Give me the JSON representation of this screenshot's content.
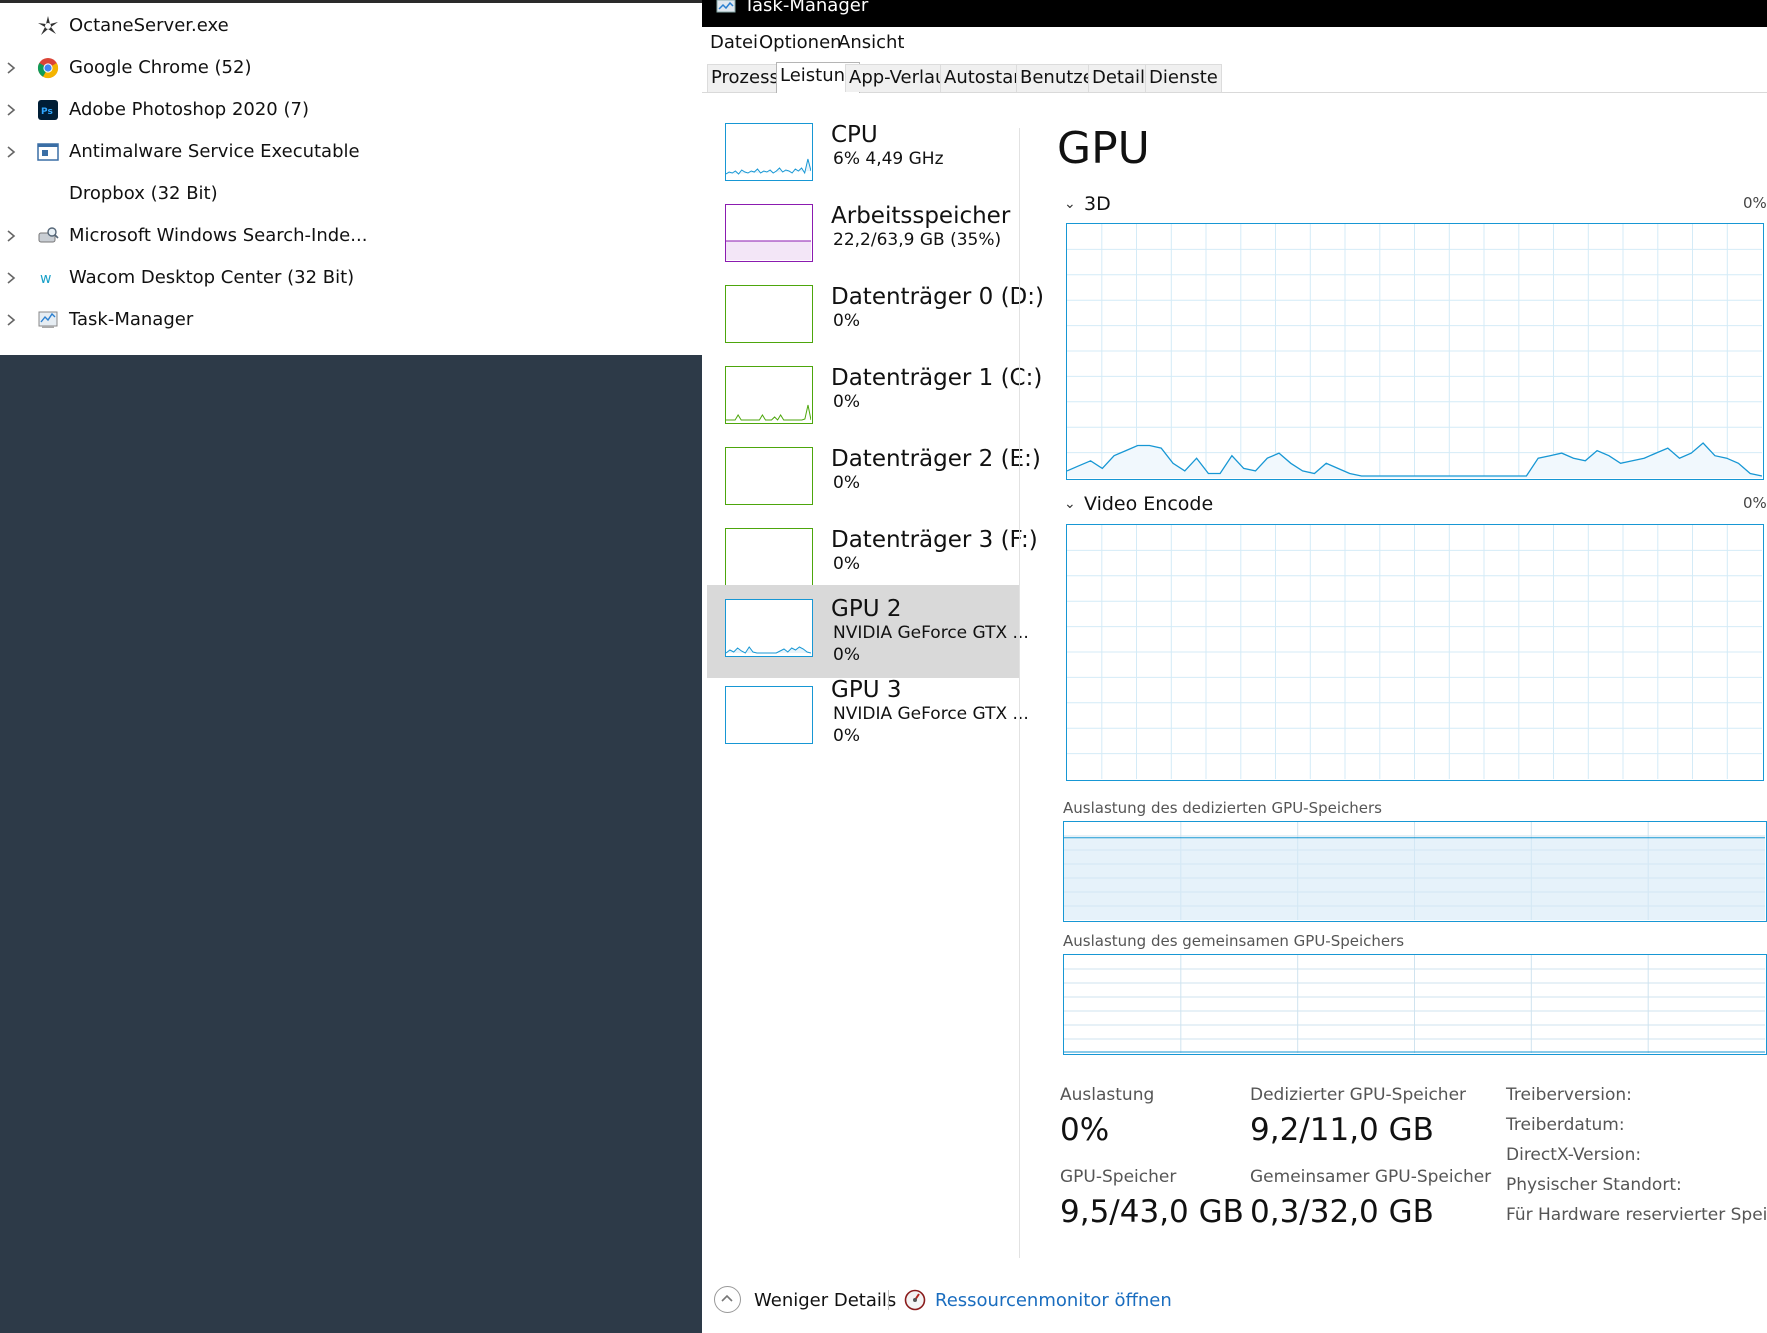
{
  "process_list": [
    {
      "name": "OctaneServer.exe",
      "icon": "octane-icon",
      "expandable": false
    },
    {
      "name": "Google Chrome (52)",
      "icon": "chrome-icon",
      "expandable": true
    },
    {
      "name": "Adobe Photoshop 2020 (7)",
      "icon": "photoshop-icon",
      "expandable": true
    },
    {
      "name": "Antimalware Service Executable",
      "icon": "antimalware-icon",
      "expandable": true
    },
    {
      "name": "Dropbox (32 Bit)",
      "icon": "none",
      "expandable": false
    },
    {
      "name": "Microsoft Windows Search-Inde...",
      "icon": "search-indexer-icon",
      "expandable": true
    },
    {
      "name": "Wacom Desktop Center (32 Bit)",
      "icon": "wacom-icon",
      "expandable": true
    },
    {
      "name": "Task-Manager",
      "icon": "task-manager-icon",
      "expandable": true
    }
  ],
  "window": {
    "title": "Task-Manager"
  },
  "menu": [
    "Datei",
    "Optionen",
    "Ansicht"
  ],
  "tabs": [
    "Prozesse",
    "Leistung",
    "App-Verlauf",
    "Autostart",
    "Benutzer",
    "Details",
    "Dienste"
  ],
  "active_tab": "Leistung",
  "sidebar": [
    {
      "title": "CPU",
      "sub1": "6%  4,49 GHz",
      "color": "#1797d4"
    },
    {
      "title": "Arbeitsspeicher",
      "sub1": "22,2/63,9 GB (35%)",
      "color": "#8b1bb0"
    },
    {
      "title": "Datenträger 0 (D:)",
      "sub1": "0%",
      "color": "#4da60c"
    },
    {
      "title": "Datenträger 1 (C:)",
      "sub1": "0%",
      "color": "#4da60c"
    },
    {
      "title": "Datenträger 2 (E:)",
      "sub1": "0%",
      "color": "#4da60c"
    },
    {
      "title": "Datenträger 3 (F:)",
      "sub1": "0%",
      "color": "#4da60c"
    },
    {
      "title": "GPU 2",
      "sub1": "NVIDIA GeForce GTX ...",
      "sub2": "0%",
      "color": "#1797d4",
      "selected": true
    },
    {
      "title": "GPU 3",
      "sub1": "NVIDIA GeForce GTX ...",
      "sub2": "0%",
      "color": "#1797d4"
    }
  ],
  "main": {
    "title": "GPU",
    "engine1": {
      "label": "3D",
      "pct": "0%"
    },
    "engine2": {
      "label": "Video Encode",
      "pct": "0%"
    },
    "dedicated_mem_label": "Auslastung des dedizierten GPU-Speichers",
    "shared_mem_label": "Auslastung des gemeinsamen GPU-Speichers"
  },
  "stats": {
    "utilization_label": "Auslastung",
    "utilization_value": "0%",
    "dedicated_label": "Dedizierter GPU-Speicher",
    "dedicated_value": "9,2/11,0 GB",
    "gpu_mem_label": "GPU-Speicher",
    "gpu_mem_value": "9,5/43,0 GB",
    "shared_label": "Gemeinsamer GPU-Speicher",
    "shared_value": "0,3/32,0 GB"
  },
  "info_labels": [
    "Treiberversion:",
    "Treiberdatum:",
    "DirectX-Version:",
    "Physischer Standort:",
    "Für Hardware reservierter Speicher:"
  ],
  "footer": {
    "less_details": "Weniger Details",
    "resource_monitor": "Ressourcenmonitor öffnen"
  },
  "colors": {
    "accent_blue": "#1797d4",
    "memory_purple": "#8b1bb0",
    "disk_green": "#4da60c",
    "link_blue": "#1a6dbf",
    "desktop_bg": "#2d3a48"
  },
  "chart_data": [
    {
      "type": "line",
      "title": "3D",
      "ylim": [
        0,
        100
      ],
      "x_points": 60,
      "series": [
        {
          "values": [
            2,
            4,
            6,
            3,
            8,
            10,
            12,
            12,
            11,
            5,
            2,
            7,
            1,
            1,
            8,
            3,
            2,
            7,
            9,
            5,
            2,
            1,
            5,
            3,
            1,
            0,
            0,
            0,
            0,
            0,
            0,
            0,
            0,
            0,
            0,
            0,
            0,
            0,
            0,
            0,
            7,
            8,
            9,
            7,
            6,
            10,
            8,
            5,
            6,
            7,
            9,
            11,
            7,
            9,
            13,
            8,
            7,
            5,
            1,
            0
          ]
        }
      ]
    },
    {
      "type": "line",
      "title": "Video Encode",
      "ylim": [
        0,
        100
      ],
      "series": [
        {
          "values": [
            0,
            0,
            0,
            0,
            0,
            0,
            0,
            0,
            0,
            0
          ]
        }
      ]
    },
    {
      "type": "area",
      "title": "Auslastung des dedizierten GPU-Speichers",
      "ylim": [
        0,
        100
      ],
      "series": [
        {
          "values": [
            84,
            84,
            84,
            84,
            84,
            84,
            84,
            84,
            84,
            84
          ]
        }
      ]
    },
    {
      "type": "area",
      "title": "Auslastung des gemeinsamen GPU-Speichers",
      "ylim": [
        0,
        100
      ],
      "series": [
        {
          "values": [
            1,
            1,
            1,
            1,
            1,
            1,
            1,
            1,
            1,
            1
          ]
        }
      ]
    }
  ]
}
